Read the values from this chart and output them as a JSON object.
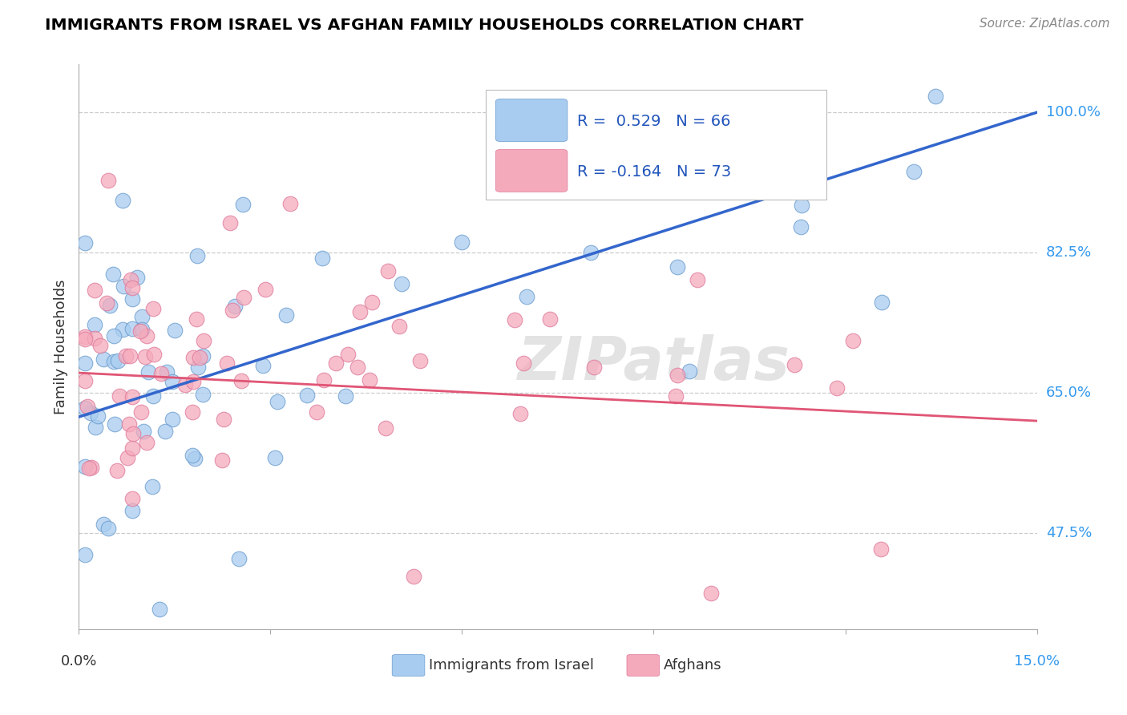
{
  "title": "IMMIGRANTS FROM ISRAEL VS AFGHAN FAMILY HOUSEHOLDS CORRELATION CHART",
  "source": "Source: ZipAtlas.com",
  "ylabel": "Family Households",
  "ytick_labels": [
    "47.5%",
    "65.0%",
    "82.5%",
    "100.0%"
  ],
  "ytick_values": [
    0.475,
    0.65,
    0.825,
    1.0
  ],
  "xmin": 0.0,
  "xmax": 0.15,
  "ymin": 0.355,
  "ymax": 1.06,
  "watermark": "ZIPatlas",
  "legend_r_israel": "R =  0.529",
  "legend_n_israel": "N = 66",
  "legend_r_afghan": "R = -0.164",
  "legend_n_afghan": "N = 73",
  "israel_color": "#A8CCF0",
  "afghan_color": "#F5AABB",
  "israel_line_color": "#3366CC",
  "afghan_line_color": "#E05575",
  "israel_line_x0": 0.0,
  "israel_line_y0": 0.62,
  "israel_line_x1": 0.15,
  "israel_line_y1": 1.0,
  "afghan_line_x0": 0.0,
  "afghan_line_y0": 0.675,
  "afghan_line_x1": 0.15,
  "afghan_line_y1": 0.615
}
